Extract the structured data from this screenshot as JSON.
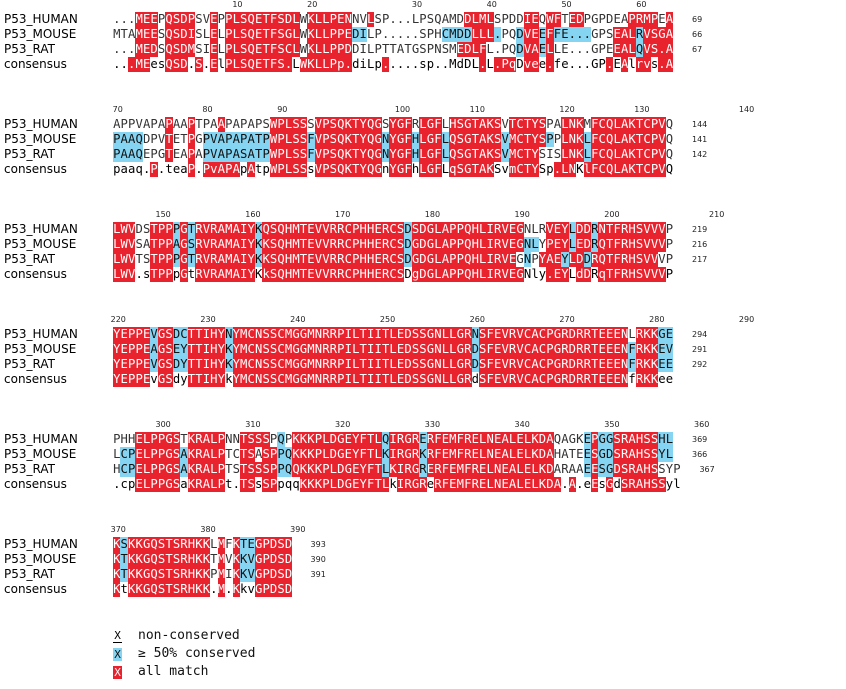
{
  "names": [
    "P53_HUMAN",
    "P53_MOUSE",
    "P53_RAT",
    "consensus"
  ],
  "blocks": [
    {
      "seqs": [
        "...MEEPQSDPSVEPPLSQETFSDLWKLLPENNVLSP...LPSQAMDDLMLSPDDIEQWFTEDPGPDEAPRMPEA",
        "MTAMEESQSDISLELPLSQETFSGLWKLLPPEDILP.....SPHCMDDLLL.PQDVEEFFE...GPSEALRVSGA",
        "...MEDSQSDMSIELPLSQETFSCLWKLLPPDDILPTTATGSPNSMEDLFL.PQDVAELLE...GPEEALQVS.A",
        "...MEesQSD.S.ElPLSQETFS.LWKLLPp.diLp.....sp..MdDL.L.PqDvee.fe...GP.EAlrvs.A"
      ],
      "colors": [
        "nnnrrrnrrrrnnrnrrrrrrrrrrnrrrrrrnnrnnnnnnnnnnnnrrrrnnnnrrnrrnrrnnnnnnrrrrnrrnnrrnnnrr",
        "nnnrrrnrrrrnnrnrrrrrrrrrrnrrrrrrbbnnnnnnnnnnbbbbrrrbnnbrrbrbbbbbnnnrrrbrrrrrnnnr",
        "nnnrrrnrrrrnnrnrrrrrrrrrrnrrrrrrnnnnnnnnnnnnnnrrrrnnnnbrrbrnnnnnnnnrrrbrrrrrnnnr",
        "ddrrrccrrrdrdrcrrrrrrrrrdrrrrrrrcdccrcddddddcccddrdrrrdrrdrcccdccdrdrdrrcrrccddcr"
      ],
      "ends": [
        69,
        66,
        67
      ],
      "ruler": [
        {
          "label": "10",
          "col": 16
        },
        {
          "label": "20",
          "col": 26
        },
        {
          "label": "30",
          "col": 40
        },
        {
          "label": "40",
          "col": 50
        },
        {
          "label": "50",
          "col": 60
        },
        {
          "label": "60",
          "col": 70
        }
      ]
    },
    {
      "seqs": [
        "APPVAPAPAAPTPAAPAPAPSWPLSSSVPSQKTYQGSYGFRLGFLHSGTAKSVTCTYSPALNKMFCQLAKTCPVQ",
        "PAAQDPVTETPGPVAPAPATPWPLSSFVPSQKTYQGNYGFHLGFLQSGTAKSVMCTYSPPLNKLFCQLAKTCPVQ",
        "PAAQEPGTEAPAPVAPASATPWPLSSFVPSQKTYQGNYGFHLGFLQSGTAKSVMCTYSISLNKLFCQLAKTCPVQ",
        "paaq.P.teaP.PvAPApAtpWPLSSsVPSQKTYQGnYGFhLGFLqSGTAKSvmCTYSp.LNKlFCQLAKTCPVQ"
      ],
      "colors": [
        "nnnnnnnrnnrnnnrnnnnnnrrrrrnrrrrrrrrrnrrrnrrrnrrrrrrrnrrrrrnnrrrnrrrrrrrrrr",
        "bbbbnnnrnnrnbbbbbbbbbrrrrrbrrrrrrrrrbrrrbrrrbrrrrrrrbrrrrrbnrrrbrrrrrrrrrr",
        "bbbbnnnrnnrnbbbbbbbbbrrrrrbrrrrrrrrrbrrrbrrrbrrrrrrrbrrrrnnnrrrbrrrrrrrrrr",
        "ccccdrdcccrdrrrrrcrccrrrrrcrrrrrrrrrcrrrcrrrcrrrrrrccrrrrcdrrrcrrrrrrrrrrr"
      ],
      "ends": [
        144,
        141,
        142
      ],
      "ruler": [
        {
          "label": "70",
          "col": 0
        },
        {
          "label": "80",
          "col": 12
        },
        {
          "label": "90",
          "col": 22
        },
        {
          "label": "100",
          "col": 38
        },
        {
          "label": "110",
          "col": 48
        },
        {
          "label": "120",
          "col": 60
        },
        {
          "label": "130",
          "col": 70
        },
        {
          "label": "140",
          "col": 84
        }
      ]
    },
    {
      "seqs": [
        "LWVDSTPPPGTRVRAMAIYKQSQHMTEVVRRCPHHERCSDSDGLAPPQHLIRVEGNLRVEYLDDRNTFRHSVVVP",
        "LWVSATPPAGSRVRAMAIYKKSQHMTEVVRRCPHHERCSDGDGLAPPQHLIRVEGNLYPEYLEDRQTFRHSVVVP",
        "LWVTSTPPPGTRVRAMAIYKKSQHMTEVVRRCPHHERCSDGDGLAPPQHLIRVEGNPYAEYLDDRQTFRHSVVVP",
        "LWV.sTPPpGtRVRAMAIYKkSQHMTEVVRRCPHHERCSDgDGLAPPQHLIRVEGNly.EYLdDRqTFRHSVVVP"
      ],
      "colors": [
        "rrrnnrrrbrbrrrrrrrrbrrrrrrrrrrrrrrrrrrrbrrrrrrrrrrrrrrrnnnrrrbrrbrrrrrrrrr",
        "rrrnnrrrbrbrrrrrrrrbrrrrrrrrrrrrrrrrrrrbrrrrrrrrrrrrrrrbbnrrrbrrbrrrrrrrrr",
        "rrrnnrrrbrbrrrrrrrrbrrrrrrrrrrrrrrrrrrrbrrrrrrrrrrrrrrnbnrrrbrrbrrrrrrrrr",
        "rrrdcrrrcrcrrrrrrrrcrrrrrrrrrrrrrrrrrrrcrrrrrrrrrrrrrrrccdrrrcrrcrrrrrrrrr"
      ],
      "ends": [
        219,
        216,
        217
      ],
      "ruler": [
        {
          "label": "150",
          "col": 6
        },
        {
          "label": "160",
          "col": 18
        },
        {
          "label": "170",
          "col": 30
        },
        {
          "label": "180",
          "col": 42
        },
        {
          "label": "190",
          "col": 54
        },
        {
          "label": "200",
          "col": 66
        },
        {
          "label": "210",
          "col": 80
        }
      ]
    },
    {
      "seqs": [
        "YEPPEVGSDCTTIHYNYMCNSSCMGGMNRRPILTIITLEDSSGNLLGRNSFEVRVCACPGRDRRTEEENLRKKGE",
        "YEPPEAGSEYTTIHYKYMCNSSCMGGMNRRPILTIITLEDSSGNLLGRDSFEVRVCACPGRDRRTEEENFRKKEV",
        "YEPPEVGSDYTTIHYKYMCNSSCMGGMNRRPILTIITLEDSSGNLLGRDSFEVRVCACPGRDRRTEEENFRKKEE",
        "YEPPEvGSdyTTIHYkYMCNSSCMGGMNRRPILTIITLEDSSGNLLGRdSFEVRVCACPGRDRRTEEENfRKKee"
      ],
      "colors": [
        "rrrrrbrrbbrrrrrbrrrrrrrrrrrrrrrrrrrrrrrrrrrrrrrrbrrrrrrrrrrrrrrrrrrrrnrrrbb",
        "rrrrrbrrbbrrrrrbrrrrrrrrrrrrrrrrrrrrrrrrrrrrrrrrbrrrrrrrrrrrrrrrrrrrrbrrrbb",
        "rrrrrbrrbbrrrrrbrrrrrrrrrrrrrrrrrrrrrrrrrrrrrrrrbrrrrrrrrrrrrrrrrrrrrbrrrbb",
        "rrrrrcrrccrrrrrcrrrrrrrrrrrrrrrrrrrrrrrrrrrrrrrrcrrrrrrrrrrrrrrrrrrrrcrrrcc"
      ],
      "ends": [
        294,
        291,
        292
      ],
      "ruler": [
        {
          "label": "220",
          "col": 0
        },
        {
          "label": "230",
          "col": 12
        },
        {
          "label": "240",
          "col": 24
        },
        {
          "label": "250",
          "col": 36
        },
        {
          "label": "260",
          "col": 48
        },
        {
          "label": "270",
          "col": 60
        },
        {
          "label": "280",
          "col": 72
        },
        {
          "label": "290",
          "col": 84
        }
      ]
    },
    {
      "seqs": [
        "PHHELPPGSTKRALPNNTSSSPQPKKKPLDGEYFTLQIRGRERFEMFRELNEALELKDAQAGKEPGGSRAHSSHL",
        "LCPELPPGSAKRALPTCTSASPPQKKKPLDGEYFTLKIRGRKRFEMFRELNEALELKDAHATEESGDSRAHSSYL",
        "HCPELPPGSAKRALPTSTSSSPPQQKKKPLDGEYFTLKIRGRERFEMFRELNEALELKDARAAEESGDSRAHSSYP",
        ".cpELPPGSaKRALPt.TSsSPpqqKKKPLDGEYFTLkIRGReRFEMFRELNEALELKDA.A.eEsGdSRAHSSyl"
      ],
      "colors": [
        "nnnrrrrrrnrrrrrnnrrrrnbnrrrrrrrrrrrrbrrrrbrrrrrrrrrrrrrrrrrnnnnbrbbrrrrrrbb",
        "nbbrrrrrrbrrrrrnnrrnrrbbrrrrrrrrrrrrbrrrrbrrrrrrrrrrrrrrrrrnnnnbrbbrrrrrrbb",
        "nbbrrrrrrbrrrrrnnrrrrrbbrrrrrrrrrrrrbrrrrbrrrrrrrrrrrrrrrrrnnnnbrbbrrrrrrnn",
        "dccrrrrrrcrrrrrcdrrcrrcccrrrrrrrrrrrrcrrrrcrrrrrrrrrrrrrrrrrdrdcrcrcrrrrrrcc"
      ],
      "ends": [
        369,
        366,
        367
      ],
      "ruler": [
        {
          "label": "300",
          "col": 6
        },
        {
          "label": "310",
          "col": 18
        },
        {
          "label": "320",
          "col": 30
        },
        {
          "label": "330",
          "col": 42
        },
        {
          "label": "340",
          "col": 54
        },
        {
          "label": "350",
          "col": 66
        },
        {
          "label": "360",
          "col": 78
        }
      ]
    },
    {
      "seqs": [
        "KSKKGQSTSRHKKLMFKTEGPDSD",
        "KTKKGQSTSRHKKTMVKKVGPDSD",
        "KTKKGQSTSRHKKPMIKKVGPDSD",
        "KtKKGQSTSRHKK.M.KkvGPDSD"
      ],
      "colors": [
        "rbrrrrrrrrrrrnrnrbbrrrrr",
        "rbrrrrrrrrrrrnrnrbbrrrrr",
        "rbrrrrrrrrrrrnrnrbbrrrrr",
        "rcrrrrrrrrrrrdrdrccrrrrr"
      ],
      "ends": [
        393,
        390,
        391
      ],
      "ruler": [
        {
          "label": "370",
          "col": 0
        },
        {
          "label": "380",
          "col": 12
        },
        {
          "label": "390",
          "col": 24
        }
      ]
    }
  ],
  "legend": [
    {
      "glyph": "X",
      "style": "none",
      "label": "non-conserved"
    },
    {
      "glyph": "X",
      "style": "blue",
      "label": "≥ 50% conserved"
    },
    {
      "glyph": "X",
      "style": "red",
      "label": "all match"
    }
  ],
  "colors": {
    "all_match": "#e8232e",
    "half_conserved": "#85d5f2",
    "consensus_partial": "#13c79a"
  }
}
